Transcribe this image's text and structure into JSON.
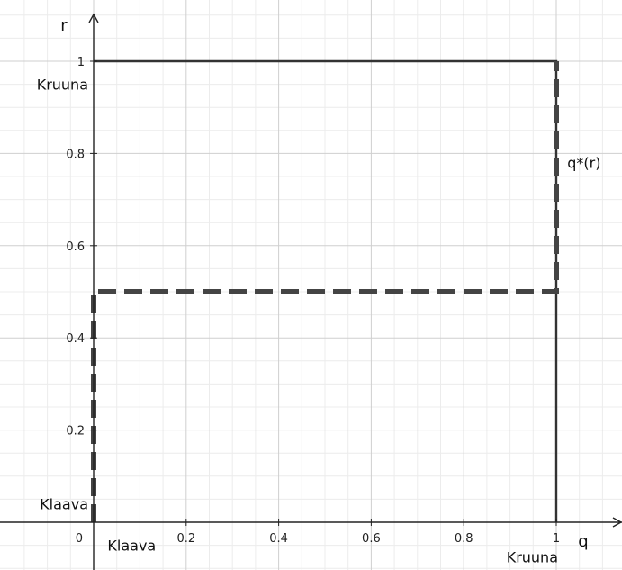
{
  "chart_data": {
    "type": "line",
    "xlabel": "q",
    "ylabel": "r",
    "xlim": [
      -0.18,
      1.55
    ],
    "ylim": [
      -0.12,
      1.1
    ],
    "grid": true,
    "x_ticks": [
      {
        "value": 0,
        "label": "0"
      },
      {
        "value": 0.2,
        "label": "0.2"
      },
      {
        "value": 0.4,
        "label": "0.4"
      },
      {
        "value": 0.6,
        "label": "0.6"
      },
      {
        "value": 0.8,
        "label": "0.8"
      },
      {
        "value": 1,
        "label": "1"
      }
    ],
    "y_ticks": [
      {
        "value": 0.2,
        "label": "0.2"
      },
      {
        "value": 0.4,
        "label": "0.4"
      },
      {
        "value": 0.6,
        "label": "0.6"
      },
      {
        "value": 0.8,
        "label": "0.8"
      },
      {
        "value": 1,
        "label": "1"
      }
    ],
    "series": [
      {
        "style": "solid",
        "color": "#333333",
        "points": [
          [
            0,
            1
          ],
          [
            1,
            1
          ],
          [
            1,
            0
          ]
        ]
      },
      {
        "name": "q*(r)",
        "style": "dashed",
        "color": "#444444",
        "points": [
          [
            0,
            0
          ],
          [
            0,
            0.5
          ],
          [
            1,
            0.5
          ],
          [
            1,
            1
          ]
        ]
      }
    ],
    "annotations": [
      {
        "text": "Kruuna",
        "x": 0,
        "y": 0.95,
        "anchor": "end"
      },
      {
        "text": "Klaava",
        "x": 0,
        "y": 0.04,
        "anchor": "end"
      },
      {
        "text": "Klaava",
        "x": 0.03,
        "y": -0.05,
        "anchor": "start"
      },
      {
        "text": "Kruuna",
        "x": 1,
        "y": -0.075,
        "anchor": "end"
      },
      {
        "text": "q*(r)",
        "x": 1.02,
        "y": 0.78,
        "anchor": "start"
      }
    ],
    "colors": {
      "grid_major": "#cfcfcf",
      "grid_minor": "#ececec",
      "axis": "#222222"
    }
  }
}
